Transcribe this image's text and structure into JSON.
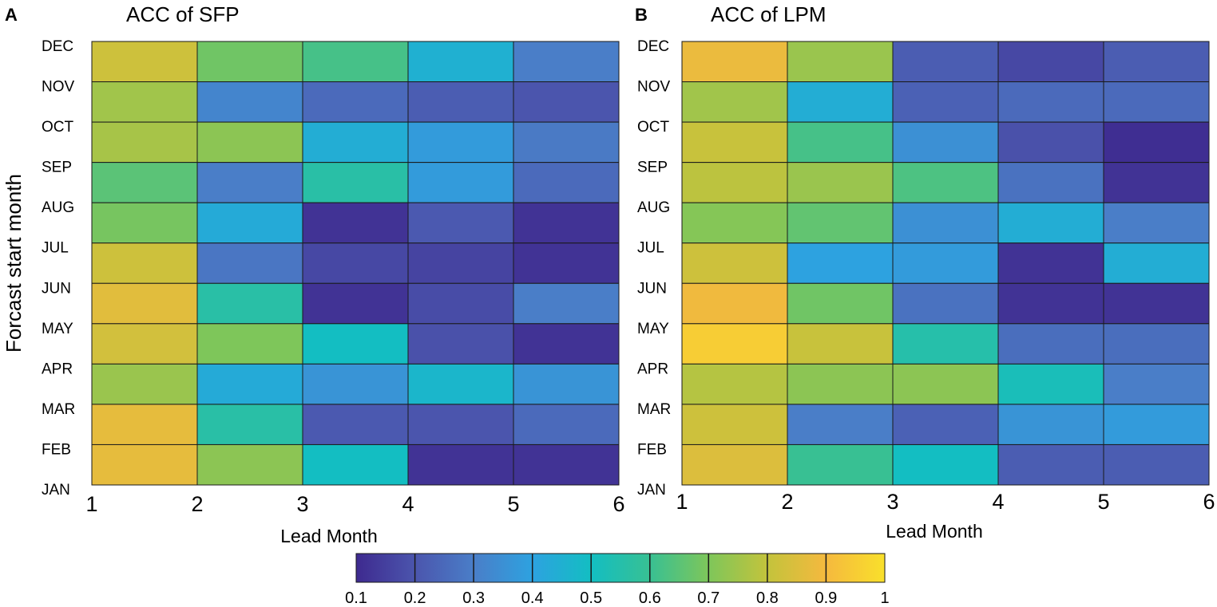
{
  "chart_data": [
    {
      "type": "heatmap",
      "panel": "A",
      "title": "ACC of SFP",
      "xlabel": "Lead Month",
      "ylabel": "Forcast start month",
      "x_ticks": [
        "1",
        "2",
        "3",
        "4",
        "5",
        "6"
      ],
      "y_ticks": [
        "DEC",
        "NOV",
        "OCT",
        "SEP",
        "AUG",
        "JUL",
        "JUN",
        "MAY",
        "APR",
        "MAR",
        "FEB",
        "JAN"
      ],
      "rows": [
        "DEC",
        "NOV",
        "OCT",
        "SEP",
        "AUG",
        "JUL",
        "JUN",
        "MAY",
        "APR",
        "MAR",
        "FEB"
      ],
      "columns": [
        "1-2",
        "2-3",
        "3-4",
        "4-5",
        "5-6"
      ],
      "values": [
        [
          0.82,
          0.68,
          0.62,
          0.45,
          0.3
        ],
        [
          0.75,
          0.32,
          0.25,
          0.22,
          0.2
        ],
        [
          0.76,
          0.72,
          0.44,
          0.38,
          0.29
        ],
        [
          0.65,
          0.3,
          0.56,
          0.38,
          0.25
        ],
        [
          0.69,
          0.43,
          0.12,
          0.21,
          0.12
        ],
        [
          0.82,
          0.28,
          0.17,
          0.16,
          0.12
        ],
        [
          0.86,
          0.56,
          0.12,
          0.18,
          0.3
        ],
        [
          0.83,
          0.7,
          0.5,
          0.19,
          0.12
        ],
        [
          0.74,
          0.43,
          0.36,
          0.47,
          0.36
        ],
        [
          0.87,
          0.56,
          0.21,
          0.2,
          0.25
        ],
        [
          0.87,
          0.72,
          0.5,
          0.12,
          0.12
        ]
      ]
    },
    {
      "type": "heatmap",
      "panel": "B",
      "title": "ACC of LPM",
      "xlabel": "Lead Month",
      "ylabel": "",
      "x_ticks": [
        "1",
        "2",
        "3",
        "4",
        "5",
        "6"
      ],
      "y_ticks": [
        "DEC",
        "NOV",
        "OCT",
        "SEP",
        "AUG",
        "JUL",
        "JUN",
        "MAY",
        "APR",
        "MAR",
        "FEB",
        "JAN"
      ],
      "rows": [
        "DEC",
        "NOV",
        "OCT",
        "SEP",
        "AUG",
        "JUL",
        "JUN",
        "MAY",
        "APR",
        "MAR",
        "FEB"
      ],
      "columns": [
        "1-2",
        "2-3",
        "3-4",
        "4-5",
        "5-6"
      ],
      "values": [
        [
          0.88,
          0.74,
          0.22,
          0.17,
          0.22
        ],
        [
          0.75,
          0.44,
          0.23,
          0.25,
          0.25
        ],
        [
          0.81,
          0.62,
          0.35,
          0.19,
          0.11
        ],
        [
          0.79,
          0.74,
          0.63,
          0.27,
          0.12
        ],
        [
          0.71,
          0.66,
          0.35,
          0.44,
          0.3
        ],
        [
          0.82,
          0.4,
          0.38,
          0.12,
          0.44
        ],
        [
          0.89,
          0.68,
          0.27,
          0.12,
          0.12
        ],
        [
          0.95,
          0.81,
          0.55,
          0.26,
          0.26
        ],
        [
          0.78,
          0.72,
          0.72,
          0.52,
          0.3
        ],
        [
          0.82,
          0.3,
          0.23,
          0.36,
          0.38
        ],
        [
          0.85,
          0.6,
          0.5,
          0.22,
          0.22
        ]
      ]
    }
  ],
  "colorbar": {
    "ticks": [
      "0.1",
      "0.2",
      "0.3",
      "0.4",
      "0.5",
      "0.6",
      "0.7",
      "0.8",
      "0.9",
      "1"
    ],
    "range": [
      0.1,
      1.0
    ],
    "colormap": [
      "#3e2a8f",
      "#4b55ad",
      "#4a7ec8",
      "#2da2e0",
      "#13bec2",
      "#38c093",
      "#7ec65a",
      "#c3c33c",
      "#f5b93e",
      "#f9e02b"
    ]
  }
}
